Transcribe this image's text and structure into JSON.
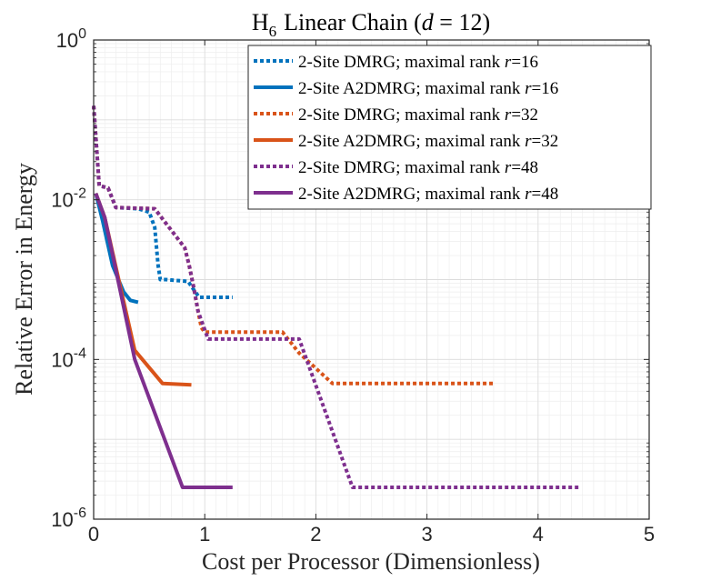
{
  "chart_data": {
    "type": "line",
    "title": "H6 Linear Chain (d = 12)",
    "title_parts": {
      "species": "H",
      "species_subscript": "6",
      "rest": "Linear Chain (",
      "var": "d",
      "equals": " = 12)"
    },
    "xlabel": "Cost per Processor (Dimensionless)",
    "ylabel": "Relative Error in Energy",
    "xlim": [
      0,
      5
    ],
    "ylim": [
      1e-06,
      1
    ],
    "yscale": "log",
    "grid": true,
    "x_ticks": [
      0,
      1,
      2,
      3,
      4,
      5
    ],
    "x_tick_labels": [
      "0",
      "1",
      "2",
      "3",
      "4",
      "5"
    ],
    "y_ticks": [
      {
        "value": 1,
        "base": "10",
        "exp": "0"
      },
      {
        "value": 0.01,
        "base": "10",
        "exp": "-2"
      },
      {
        "value": 0.0001,
        "base": "10",
        "exp": "-4"
      },
      {
        "value": 1e-06,
        "base": "10",
        "exp": "-6"
      }
    ],
    "legend_position": "top-right",
    "series": [
      {
        "name": "2-Site DMRG; maximal rank r=16",
        "legend_prefix": "2-Site DMRG; maximal rank ",
        "legend_var": "r",
        "legend_value": "=16",
        "color": "#0072BD",
        "style": "dotted",
        "x": [
          0.0,
          0.05,
          0.13,
          0.2,
          0.4,
          0.5,
          0.55,
          0.58,
          0.6,
          0.65,
          0.85,
          0.9,
          0.95,
          1.25
        ],
        "y": [
          0.15,
          0.015,
          0.014,
          0.008,
          0.0077,
          0.007,
          0.0045,
          0.0015,
          0.001,
          0.001,
          0.00095,
          0.00075,
          0.0006,
          0.0006
        ]
      },
      {
        "name": "2-Site A2DMRG; maximal rank r=16",
        "legend_prefix": "2-Site A2DMRG; maximal rank ",
        "legend_var": "r",
        "legend_value": "=16",
        "color": "#0072BD",
        "style": "solid",
        "x": [
          0.02,
          0.08,
          0.17,
          0.27,
          0.33,
          0.4
        ],
        "y": [
          0.012,
          0.0055,
          0.0015,
          0.0007,
          0.00055,
          0.00052
        ]
      },
      {
        "name": "2-Site DMRG; maximal rank r=32",
        "legend_prefix": "2-Site DMRG; maximal rank ",
        "legend_var": "r",
        "legend_value": "=32",
        "color": "#D95319",
        "style": "dotted",
        "x": [
          0.0,
          0.05,
          0.13,
          0.2,
          0.55,
          0.82,
          0.86,
          0.9,
          0.94,
          0.97,
          1.0,
          1.7,
          1.85,
          2.15,
          3.6
        ],
        "y": [
          0.15,
          0.015,
          0.014,
          0.008,
          0.0077,
          0.0025,
          0.0015,
          0.0008,
          0.0004,
          0.00025,
          0.00022,
          0.00022,
          0.00012,
          5e-05,
          5e-05
        ]
      },
      {
        "name": "2-Site A2DMRG; maximal rank r=32",
        "legend_prefix": "2-Site A2DMRG; maximal rank ",
        "legend_var": "r",
        "legend_value": "=32",
        "color": "#D95319",
        "style": "solid",
        "x": [
          0.02,
          0.1,
          0.25,
          0.37,
          0.62,
          0.88
        ],
        "y": [
          0.012,
          0.006,
          0.0007,
          0.00013,
          5e-05,
          4.8e-05
        ]
      },
      {
        "name": "2-Site DMRG; maximal rank r=48",
        "legend_prefix": "2-Site DMRG; maximal rank ",
        "legend_var": "r",
        "legend_value": "=48",
        "color": "#7E2F8E",
        "style": "dotted",
        "x": [
          0.0,
          0.05,
          0.13,
          0.2,
          0.55,
          0.82,
          0.86,
          0.9,
          0.94,
          1.03,
          1.85,
          2.33,
          4.38
        ],
        "y": [
          0.15,
          0.015,
          0.014,
          0.008,
          0.0077,
          0.0025,
          0.0015,
          0.0008,
          0.0004,
          0.00018,
          0.00018,
          2.5e-06,
          2.5e-06
        ]
      },
      {
        "name": "2-Site A2DMRG; maximal rank r=48",
        "legend_prefix": "2-Site A2DMRG; maximal rank ",
        "legend_var": "r",
        "legend_value": "=48",
        "color": "#7E2F8E",
        "style": "solid",
        "x": [
          0.02,
          0.1,
          0.37,
          0.8,
          1.25
        ],
        "y": [
          0.012,
          0.006,
          0.0001,
          2.5e-06,
          2.5e-06
        ]
      }
    ]
  }
}
